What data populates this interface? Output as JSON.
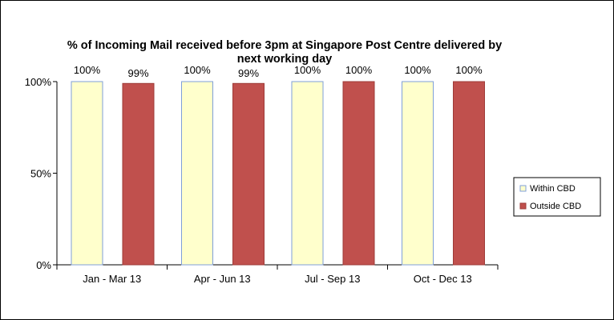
{
  "chart_data": {
    "type": "bar",
    "title_lines": [
      "% of Incoming Mail received before 3pm at Singapore Post Centre delivered by",
      "next working day"
    ],
    "categories": [
      "Jan - Mar 13",
      "Apr - Jun 13",
      "Jul - Sep 13",
      "Oct - Dec 13"
    ],
    "series": [
      {
        "name": "Within CBD",
        "values": [
          100,
          100,
          100,
          100
        ],
        "labels": [
          "100%",
          "100%",
          "100%",
          "100%"
        ],
        "color": "#FFFFCC",
        "edge": "#7F9FD8"
      },
      {
        "name": "Outside CBD",
        "values": [
          99,
          99,
          100,
          100
        ],
        "labels": [
          "99%",
          "99%",
          "100%",
          "100%"
        ],
        "color": "#C0504D",
        "edge": "#9E3B38"
      }
    ],
    "ylim": [
      0,
      100
    ],
    "yticks": [
      0,
      50,
      100
    ],
    "ytick_labels": [
      "0%",
      "50%",
      "100%"
    ],
    "grid": false,
    "legend_position": "right"
  }
}
